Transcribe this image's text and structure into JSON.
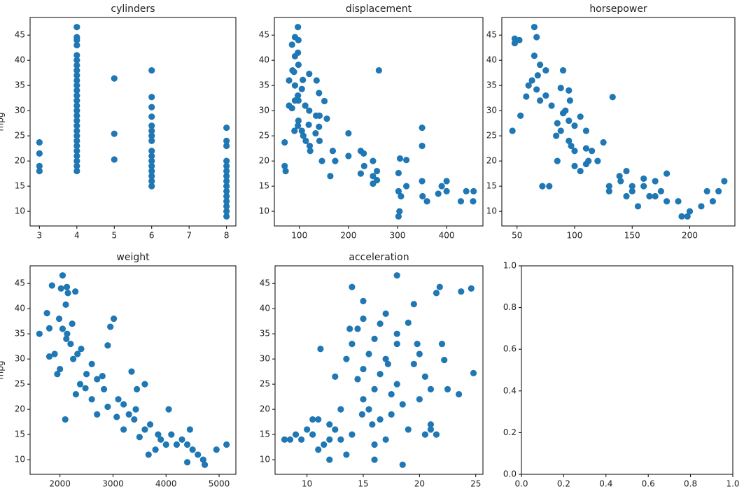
{
  "chart_data": [
    {
      "type": "scatter",
      "title": "cylinders",
      "y_label": "mpg",
      "color": "#1f77b4",
      "x": [
        3,
        3,
        3,
        3,
        4,
        4,
        4,
        4,
        4,
        4,
        4,
        4,
        4,
        4,
        4,
        4,
        4,
        4,
        4,
        4,
        4,
        4,
        4,
        4,
        4,
        4,
        4,
        4,
        4,
        4,
        4,
        4,
        5,
        5,
        5,
        6,
        6,
        6,
        6,
        6,
        6,
        6,
        6,
        6,
        6,
        6,
        6,
        6,
        6,
        6,
        6,
        8,
        8,
        8,
        8,
        8,
        8,
        8,
        8,
        8,
        8,
        8,
        8,
        8,
        8,
        8
      ],
      "values": [
        18,
        19,
        21.5,
        23.7,
        18,
        19,
        20,
        21,
        22,
        23,
        24,
        25,
        26,
        27,
        28,
        29,
        30,
        31,
        32,
        33,
        34,
        35,
        36,
        37,
        38,
        39,
        40,
        41,
        43,
        44,
        44.6,
        46.6,
        20.3,
        25.4,
        36.4,
        15,
        16,
        17,
        18,
        19,
        20,
        21,
        22,
        24,
        25,
        26,
        27,
        28.8,
        30.7,
        32.7,
        38,
        9,
        10,
        11,
        12,
        13,
        14,
        15,
        16,
        17,
        18,
        19,
        20,
        23,
        24,
        26.6
      ],
      "xlim": [
        2.75,
        8.25
      ],
      "ylim": [
        7.1,
        48.5
      ],
      "xticks": [
        3,
        4,
        5,
        6,
        7,
        8
      ],
      "yticks": [
        10,
        15,
        20,
        25,
        30,
        35,
        40,
        45
      ]
    },
    {
      "type": "scatter",
      "title": "displacement",
      "color": "#1f77b4",
      "x": [
        97,
        91,
        98,
        85,
        97,
        91,
        98,
        86,
        262,
        120,
        89,
        107,
        79,
        135,
        91,
        105,
        140,
        97,
        98,
        151,
        112,
        85,
        120,
        134,
        156,
        98,
        119,
        140,
        200,
        108,
        225,
        231,
        168,
        141,
        250,
        232,
        258,
        302,
        350,
        318,
        400,
        455,
        440,
        307,
        360,
        383,
        429,
        304,
        302,
        351,
        250,
        258,
        121,
        122,
        113,
        70,
        70,
        72,
        318,
        305,
        400,
        454,
        390,
        173,
        146,
        225,
        302,
        350,
        350,
        200,
        250,
        141,
        105,
        90,
        79,
        97,
        91,
        133,
        163
      ],
      "values": [
        46.6,
        44.6,
        44,
        43.1,
        41.5,
        40.8,
        39.1,
        38,
        38,
        37.3,
        37.7,
        36.1,
        36,
        36,
        35,
        34.3,
        33.5,
        33,
        32,
        31.9,
        31,
        30.5,
        30,
        29,
        28.4,
        28,
        27.2,
        26.8,
        25.5,
        25,
        22,
        21.5,
        22,
        24,
        20,
        19,
        18,
        17.6,
        16,
        15,
        14,
        14,
        14,
        13,
        12,
        13.5,
        12,
        10,
        9,
        13,
        15.5,
        16.2,
        23,
        22,
        24,
        23.7,
        19,
        18,
        20.2,
        20.5,
        16,
        12,
        15,
        20,
        20,
        17.5,
        14,
        26.6,
        23,
        21,
        17,
        29,
        26,
        26,
        31,
        27,
        32,
        25.5,
        17
      ],
      "xlim": [
        49,
        474
      ],
      "ylim": [
        7.1,
        48.5
      ],
      "xticks": [
        100,
        200,
        300,
        400
      ],
      "yticks": [
        10,
        15,
        20,
        25,
        30,
        35,
        40,
        45
      ]
    },
    {
      "type": "scatter",
      "title": "horsepower",
      "color": "#1f77b4",
      "x": [
        46,
        48,
        48,
        52,
        65,
        67,
        65,
        70,
        75,
        90,
        68,
        63,
        67,
        88,
        96,
        133,
        105,
        100,
        110,
        90,
        80,
        75,
        85,
        88,
        95,
        97,
        95,
        110,
        115,
        120,
        100,
        105,
        110,
        125,
        145,
        140,
        150,
        150,
        165,
        170,
        175,
        180,
        190,
        198,
        193,
        200,
        215,
        225,
        230,
        210,
        220,
        160,
        139,
        130,
        72,
        78,
        112,
        84,
        92,
        60,
        58,
        53,
        70,
        95,
        130,
        155,
        160,
        85,
        100,
        145,
        170,
        180
      ],
      "values": [
        26,
        43.4,
        44.3,
        44,
        46.6,
        44.6,
        40.9,
        39.1,
        38,
        38,
        37,
        36,
        34.2,
        34.5,
        32,
        32.7,
        28.8,
        27,
        26,
        29.5,
        31,
        33,
        27.5,
        26,
        24,
        23,
        28,
        22.5,
        22,
        20,
        19,
        18,
        19.4,
        23.7,
        18,
        16,
        15,
        14,
        13,
        16,
        14,
        12,
        12,
        9,
        9,
        10,
        14,
        14,
        16,
        11,
        12,
        15,
        17,
        15,
        15,
        15,
        20,
        25,
        30,
        35,
        32.8,
        29,
        32,
        34,
        14,
        11,
        16.5,
        20,
        22,
        13,
        13,
        17.5
      ],
      "xlim": [
        36.8,
        239.2
      ],
      "ylim": [
        7.1,
        48.5
      ],
      "xticks": [
        50,
        100,
        150,
        200
      ],
      "yticks": [
        10,
        15,
        20,
        25,
        30,
        35,
        40,
        45
      ]
    },
    {
      "type": "scatter",
      "title": "weight",
      "y_label": "mpg",
      "color": "#1f77b4",
      "x": [
        1613,
        1755,
        1800,
        1850,
        2020,
        2050,
        2130,
        2150,
        2110,
        1985,
        2290,
        2050,
        2120,
        2200,
        2330,
        2250,
        1950,
        2100,
        2400,
        2380,
        2500,
        2600,
        2700,
        2830,
        2950,
        3015,
        2900,
        3100,
        3200,
        3300,
        3430,
        3450,
        3600,
        3700,
        3850,
        3900,
        4000,
        4100,
        4200,
        4300,
        4400,
        4500,
        4600,
        4700,
        4730,
        4950,
        5140,
        4450,
        4400,
        3600,
        2800,
        3800,
        3200,
        2600,
        2300,
        1900,
        1800,
        2000,
        2135,
        2230,
        3400,
        3070,
        3500,
        4050,
        3670,
        2700,
        2900,
        2480,
        3350
      ],
      "values": [
        35,
        39.1,
        36.1,
        44.6,
        44,
        46.6,
        44.3,
        43.1,
        40.8,
        38,
        43.4,
        36,
        34,
        33,
        31,
        30,
        27,
        18,
        32,
        25,
        27,
        29,
        26,
        24,
        36.4,
        38,
        32.7,
        22,
        21,
        19,
        20,
        24,
        16,
        17,
        15,
        14,
        13,
        15,
        13,
        14,
        13,
        12,
        11,
        10,
        9,
        12,
        13,
        16,
        9.5,
        25,
        26.6,
        12,
        16,
        22,
        23,
        31,
        30.5,
        28,
        35,
        37,
        18,
        18.5,
        14.5,
        20,
        11,
        19,
        20.5,
        24.2,
        27.5
      ],
      "xlim": [
        1437,
        5316
      ],
      "ylim": [
        7.1,
        48.5
      ],
      "xticks": [
        2000,
        3000,
        4000,
        5000
      ],
      "yticks": [
        10,
        15,
        20,
        25,
        30,
        35,
        40,
        45
      ]
    },
    {
      "type": "scatter",
      "title": "acceleration",
      "color": "#1f77b4",
      "x": [
        8,
        8.5,
        9,
        9.5,
        10,
        10.5,
        11,
        11,
        11.5,
        12,
        12,
        12.5,
        13,
        13,
        13.5,
        13.5,
        14,
        14,
        14,
        14.5,
        14.5,
        15,
        15,
        15,
        15,
        15.5,
        15.5,
        16,
        16,
        16,
        16,
        16.5,
        16.5,
        17,
        17,
        17,
        17.5,
        17.5,
        18,
        18,
        18,
        18.5,
        18.5,
        19,
        19,
        19.5,
        19.5,
        20,
        20,
        20.5,
        21,
        21,
        21.5,
        21.8,
        22,
        22.2,
        22.5,
        23.5,
        23.7,
        24.6,
        24.8,
        21.5,
        21,
        20.5,
        12,
        10.5,
        11.2,
        12.5,
        13.8,
        16.5,
        18,
        15.8,
        14.9,
        17.2,
        19.8
      ],
      "values": [
        14,
        14,
        15,
        14,
        16,
        15,
        18,
        12,
        13,
        14,
        10,
        16,
        14,
        20,
        11,
        30,
        15,
        33,
        44.3,
        26,
        36,
        22,
        28,
        38,
        41.5,
        20,
        31,
        13,
        24,
        34,
        10,
        18,
        27,
        14,
        30,
        39,
        23,
        19,
        46.6,
        33,
        25,
        9,
        21,
        16,
        37.2,
        40.9,
        29,
        22,
        31,
        26.5,
        17,
        24,
        43.1,
        44.3,
        33,
        29.8,
        24,
        23,
        43.4,
        44,
        27.2,
        15,
        16,
        15,
        17,
        18,
        32,
        26.5,
        36,
        37,
        35,
        17,
        19,
        29,
        33
      ],
      "xlim": [
        7.16,
        25.64
      ],
      "ylim": [
        7.1,
        48.5
      ],
      "xticks": [
        10,
        15,
        20,
        25
      ],
      "yticks": [
        10,
        15,
        20,
        25,
        30,
        35,
        40,
        45
      ]
    },
    {
      "type": "scatter",
      "xlim": [
        0,
        1
      ],
      "ylim": [
        0,
        1
      ],
      "xticks": [
        {
          "value": 0,
          "label": "0.0"
        },
        {
          "value": 0.2,
          "label": "0.2"
        },
        {
          "value": 0.4,
          "label": "0.4"
        },
        {
          "value": 0.6,
          "label": "0.6"
        },
        {
          "value": 0.8,
          "label": "0.8"
        },
        {
          "value": 1,
          "label": "1.0"
        }
      ],
      "yticks": [
        {
          "value": 0,
          "label": "0.0"
        },
        {
          "value": 0.2,
          "label": "0.2"
        },
        {
          "value": 0.4,
          "label": "0.4"
        },
        {
          "value": 0.6,
          "label": "0.6"
        },
        {
          "value": 0.8,
          "label": "0.8"
        },
        {
          "value": 1,
          "label": "1.0"
        }
      ]
    }
  ]
}
